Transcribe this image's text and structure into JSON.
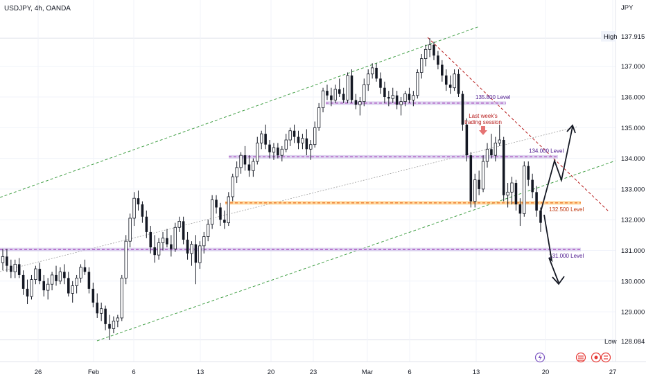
{
  "chart_data": {
    "type": "candlestick",
    "title": "USDJPY, 4h, OANDA",
    "currency_label": "JPY",
    "y_ticks": [
      "137.000",
      "136.000",
      "135.000",
      "134.000",
      "133.000",
      "132.000",
      "131.000",
      "130.000",
      "129.000"
    ],
    "x_ticks": [
      "26",
      "Feb",
      "6",
      "13",
      "20",
      "23",
      "Mar",
      "6",
      "13",
      "20",
      "27"
    ],
    "high_label": "High",
    "high_value": "137.915",
    "low_label": "Low",
    "low_value": "128.084",
    "ylim": [
      127.8,
      138.8
    ],
    "levels": [
      {
        "label": "135.800 Level",
        "price": 135.8,
        "color": "#9c27b0"
      },
      {
        "label": "134.000 Level",
        "price": 134.05,
        "color": "#9c27b0"
      },
      {
        "label": "132.500 Level",
        "price": 132.55,
        "color": "#e65100"
      },
      {
        "label": "131.000 Level",
        "price": 131.03,
        "color": "#9c27b0"
      }
    ],
    "annotation": {
      "lines": [
        "Last week's",
        "trading session"
      ]
    },
    "ohlc": [
      [
        130.6,
        131.05,
        130.35,
        130.8
      ],
      [
        130.8,
        131.05,
        130.3,
        130.5
      ],
      [
        130.5,
        130.7,
        130.1,
        130.3
      ],
      [
        130.3,
        130.7,
        130.1,
        130.55
      ],
      [
        130.55,
        130.75,
        130.1,
        130.2
      ],
      [
        130.2,
        130.35,
        129.55,
        129.75
      ],
      [
        129.75,
        130.05,
        129.25,
        129.5
      ],
      [
        129.5,
        130.2,
        129.4,
        130.05
      ],
      [
        130.05,
        130.5,
        129.9,
        130.4
      ],
      [
        130.4,
        130.6,
        129.9,
        130.0
      ],
      [
        130.0,
        130.2,
        129.5,
        129.7
      ],
      [
        129.7,
        130.1,
        129.4,
        129.9
      ],
      [
        129.9,
        130.3,
        129.7,
        130.2
      ],
      [
        130.2,
        130.5,
        129.85,
        130.0
      ],
      [
        130.0,
        130.45,
        129.9,
        130.3
      ],
      [
        130.3,
        130.55,
        129.9,
        130.1
      ],
      [
        130.1,
        130.3,
        129.5,
        129.6
      ],
      [
        129.6,
        130.0,
        129.3,
        129.85
      ],
      [
        129.85,
        130.2,
        129.6,
        130.1
      ],
      [
        130.1,
        130.55,
        129.95,
        130.45
      ],
      [
        130.45,
        130.7,
        130.2,
        130.3
      ],
      [
        130.3,
        130.45,
        129.6,
        129.75
      ],
      [
        129.75,
        129.95,
        129.15,
        129.3
      ],
      [
        129.3,
        129.6,
        128.8,
        128.95
      ],
      [
        128.95,
        129.3,
        128.7,
        129.1
      ],
      [
        129.1,
        129.2,
        128.4,
        128.6
      ],
      [
        128.6,
        128.9,
        128.08,
        128.45
      ],
      [
        128.45,
        128.85,
        128.3,
        128.7
      ],
      [
        128.7,
        128.9,
        128.5,
        128.8
      ],
      [
        128.8,
        130.2,
        128.7,
        130.1
      ],
      [
        130.1,
        131.5,
        129.9,
        131.3
      ],
      [
        131.3,
        132.2,
        131.1,
        132.05
      ],
      [
        132.05,
        132.9,
        131.8,
        132.7
      ],
      [
        132.7,
        132.95,
        132.3,
        132.5
      ],
      [
        132.5,
        132.6,
        131.9,
        132.1
      ],
      [
        132.1,
        132.3,
        131.4,
        131.6
      ],
      [
        131.6,
        131.8,
        130.9,
        131.1
      ],
      [
        131.1,
        131.5,
        130.6,
        130.85
      ],
      [
        130.85,
        131.4,
        130.7,
        131.25
      ],
      [
        131.25,
        131.6,
        131.0,
        131.4
      ],
      [
        131.4,
        131.7,
        131.1,
        131.2
      ],
      [
        131.2,
        131.5,
        130.8,
        131.05
      ],
      [
        131.05,
        131.9,
        130.95,
        131.75
      ],
      [
        131.75,
        132.1,
        131.6,
        131.95
      ],
      [
        131.95,
        132.1,
        131.2,
        131.35
      ],
      [
        131.35,
        131.6,
        130.7,
        130.9
      ],
      [
        130.9,
        131.3,
        130.5,
        131.2
      ],
      [
        131.2,
        131.5,
        129.9,
        130.6
      ],
      [
        130.6,
        131.3,
        130.4,
        131.15
      ],
      [
        131.15,
        131.6,
        130.9,
        131.45
      ],
      [
        131.45,
        132.0,
        131.3,
        131.85
      ],
      [
        131.85,
        132.8,
        131.7,
        132.65
      ],
      [
        132.65,
        132.8,
        132.2,
        132.4
      ],
      [
        132.4,
        132.55,
        131.8,
        132.0
      ],
      [
        132.0,
        132.3,
        131.7,
        131.9
      ],
      [
        131.9,
        132.9,
        131.8,
        132.75
      ],
      [
        132.75,
        133.5,
        132.6,
        133.4
      ],
      [
        133.4,
        133.9,
        133.2,
        133.7
      ],
      [
        133.7,
        134.2,
        133.5,
        134.1
      ],
      [
        134.1,
        134.4,
        133.6,
        133.8
      ],
      [
        133.8,
        134.1,
        133.4,
        133.6
      ],
      [
        133.6,
        134.0,
        133.4,
        133.9
      ],
      [
        133.9,
        134.7,
        133.8,
        134.5
      ],
      [
        134.5,
        134.9,
        134.3,
        134.8
      ],
      [
        134.8,
        135.1,
        134.3,
        134.45
      ],
      [
        134.45,
        134.6,
        134.0,
        134.2
      ],
      [
        134.2,
        134.5,
        133.95,
        134.35
      ],
      [
        134.35,
        134.5,
        134.0,
        134.1
      ],
      [
        134.1,
        134.4,
        133.9,
        134.3
      ],
      [
        134.3,
        134.8,
        134.2,
        134.6
      ],
      [
        134.6,
        135.0,
        134.4,
        134.9
      ],
      [
        134.9,
        135.1,
        134.5,
        134.7
      ],
      [
        134.7,
        134.9,
        134.3,
        134.5
      ],
      [
        134.5,
        134.8,
        134.3,
        134.65
      ],
      [
        134.65,
        134.95,
        134.1,
        134.3
      ],
      [
        134.3,
        134.6,
        133.95,
        134.45
      ],
      [
        134.45,
        135.2,
        134.35,
        135.0
      ],
      [
        135.0,
        135.8,
        134.9,
        135.65
      ],
      [
        135.65,
        136.3,
        135.5,
        136.2
      ],
      [
        136.2,
        136.4,
        135.9,
        136.05
      ],
      [
        136.05,
        136.3,
        135.7,
        135.9
      ],
      [
        135.9,
        136.4,
        135.8,
        136.25
      ],
      [
        136.25,
        136.6,
        136.0,
        136.1
      ],
      [
        136.1,
        136.3,
        135.8,
        135.9
      ],
      [
        135.9,
        136.8,
        135.8,
        136.7
      ],
      [
        136.7,
        136.9,
        135.8,
        135.9
      ],
      [
        135.9,
        136.1,
        135.6,
        135.75
      ],
      [
        135.75,
        136.0,
        135.4,
        135.85
      ],
      [
        135.85,
        136.6,
        135.7,
        136.4
      ],
      [
        136.4,
        136.9,
        136.2,
        136.75
      ],
      [
        136.75,
        137.1,
        136.6,
        136.95
      ],
      [
        136.95,
        137.1,
        136.5,
        136.6
      ],
      [
        136.6,
        136.8,
        136.1,
        136.3
      ],
      [
        136.3,
        136.5,
        135.8,
        136.0
      ],
      [
        136.0,
        136.2,
        135.7,
        135.95
      ],
      [
        135.95,
        136.3,
        135.8,
        136.05
      ],
      [
        136.05,
        136.2,
        135.6,
        135.75
      ],
      [
        135.75,
        136.0,
        135.4,
        135.85
      ],
      [
        135.85,
        136.2,
        135.7,
        136.1
      ],
      [
        136.1,
        136.3,
        135.8,
        135.9
      ],
      [
        135.9,
        136.2,
        135.7,
        136.05
      ],
      [
        136.05,
        136.9,
        135.95,
        136.8
      ],
      [
        136.8,
        137.4,
        136.6,
        137.25
      ],
      [
        137.25,
        137.7,
        137.0,
        137.55
      ],
      [
        137.55,
        137.915,
        137.3,
        137.7
      ],
      [
        137.7,
        137.8,
        137.2,
        137.35
      ],
      [
        137.35,
        137.5,
        136.9,
        137.05
      ],
      [
        137.05,
        137.2,
        136.5,
        136.7
      ],
      [
        136.7,
        136.9,
        136.2,
        136.4
      ],
      [
        136.4,
        136.7,
        136.1,
        136.3
      ],
      [
        136.3,
        136.9,
        136.2,
        136.75
      ],
      [
        136.75,
        136.9,
        136.0,
        136.1
      ],
      [
        136.1,
        136.2,
        134.9,
        135.1
      ],
      [
        135.1,
        135.3,
        133.9,
        134.1
      ],
      [
        134.1,
        134.2,
        132.4,
        132.6
      ],
      [
        132.6,
        133.5,
        132.4,
        133.3
      ],
      [
        133.3,
        133.6,
        132.8,
        133.0
      ],
      [
        133.0,
        134.1,
        132.9,
        133.9
      ],
      [
        133.9,
        134.5,
        133.7,
        134.3
      ],
      [
        134.3,
        134.8,
        134.0,
        134.1
      ],
      [
        134.1,
        134.7,
        133.9,
        134.5
      ],
      [
        134.5,
        135.1,
        134.4,
        134.6
      ],
      [
        134.6,
        134.7,
        132.6,
        132.8
      ],
      [
        132.8,
        133.2,
        132.4,
        132.9
      ],
      [
        132.9,
        133.4,
        132.5,
        133.2
      ],
      [
        133.2,
        133.3,
        132.3,
        132.5
      ],
      [
        132.5,
        132.7,
        131.8,
        132.2
      ],
      [
        132.2,
        133.9,
        132.1,
        133.75
      ],
      [
        133.75,
        133.9,
        133.1,
        133.3
      ],
      [
        133.3,
        133.5,
        132.7,
        132.9
      ],
      [
        132.9,
        133.1,
        132.1,
        132.3
      ],
      [
        132.3,
        132.4,
        131.6,
        131.9
      ]
    ]
  }
}
